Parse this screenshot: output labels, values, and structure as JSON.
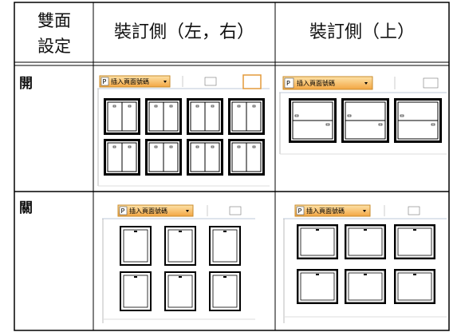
{
  "header": {
    "cells": [
      "雙面設定",
      "裝訂側（左，右）",
      "裝訂側（上）"
    ]
  },
  "rows": [
    {
      "label": "開"
    },
    {
      "label": "關"
    }
  ],
  "toolbar": {
    "icon": "P",
    "button": "插入頁面號碼"
  }
}
